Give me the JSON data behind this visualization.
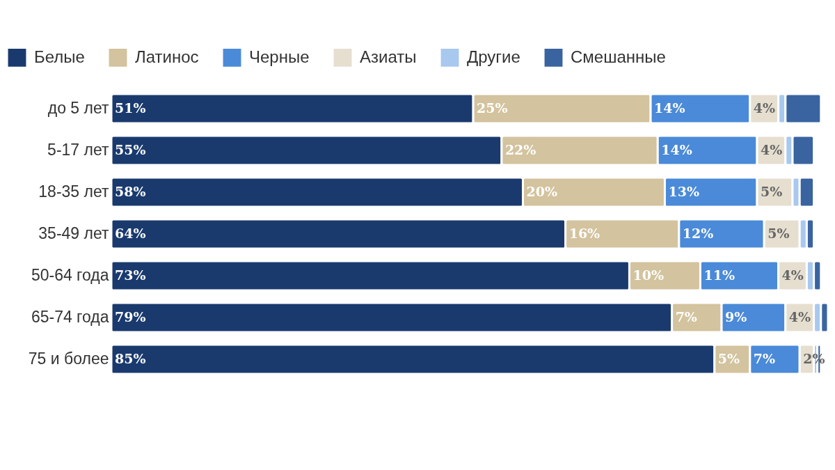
{
  "chart_data": {
    "type": "bar",
    "orientation": "horizontal",
    "stacked": true,
    "legend": "top",
    "categories": [
      "до 5 лет",
      "5-17 лет",
      "18-35 лет",
      "35-49 лет",
      "50-64 года",
      "65-74 года",
      "75 и более"
    ],
    "series": [
      {
        "name": "Белые",
        "color": "#1a3a6e",
        "values": [
          51,
          55,
          58,
          64,
          73,
          79,
          85
        ],
        "value_labels": [
          "51%",
          "55%",
          "58%",
          "64%",
          "73%",
          "79%",
          "85%"
        ]
      },
      {
        "name": "Латинос",
        "color": "#d3c39e",
        "values": [
          25,
          22,
          20,
          16,
          10,
          7,
          5
        ],
        "value_labels": [
          "25%",
          "22%",
          "20%",
          "16%",
          "10%",
          "7%",
          "5%"
        ]
      },
      {
        "name": "Черные",
        "color": "#4a8ad8",
        "values": [
          14,
          14,
          13,
          12,
          11,
          9,
          7
        ],
        "value_labels": [
          "14%",
          "14%",
          "13%",
          "12%",
          "11%",
          "9%",
          "7%"
        ]
      },
      {
        "name": "Азиаты",
        "color": "#e6dfd0",
        "values": [
          4,
          4,
          5,
          5,
          4,
          4,
          2
        ],
        "value_labels": [
          "4%",
          "4%",
          "5%",
          "5%",
          "4%",
          "4%",
          "2%"
        ]
      },
      {
        "name": "Другие",
        "color": "#a8c8ee",
        "values": [
          1,
          1,
          1,
          1,
          1,
          1,
          0.5
        ],
        "value_labels": [
          null,
          null,
          null,
          null,
          null,
          null,
          null
        ]
      },
      {
        "name": "Смешанные",
        "color": "#3a64a0",
        "values": [
          5,
          3,
          2,
          1,
          1,
          1,
          0.5
        ],
        "value_labels": [
          null,
          null,
          null,
          null,
          null,
          null,
          null
        ]
      }
    ]
  }
}
